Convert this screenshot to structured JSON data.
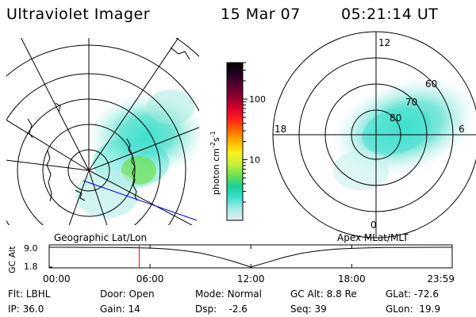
{
  "header": {
    "title": "Ultraviolet Imager",
    "date": "15 Mar 07",
    "time": "05:21:14 UT"
  },
  "left_panel": {
    "caption": "Geographic Lat/Lon"
  },
  "right_panel": {
    "caption": "Apex MLat/MLT",
    "mlt_labels": [
      "12",
      "18",
      "6",
      "0"
    ],
    "lat_labels": [
      "60",
      "70",
      "80"
    ]
  },
  "colorbar": {
    "label": "photon cm",
    "label_sup1": "-2",
    "label_s": "s",
    "label_sup2": "-1",
    "scale": "log",
    "range": [
      1,
      400
    ],
    "ticks": [
      {
        "value": 10,
        "label": "10"
      },
      {
        "value": 100,
        "label": "100"
      }
    ],
    "colors": [
      "#e6eef0",
      "#a8ece6",
      "#3fe0cf",
      "#1ccf9a",
      "#6ee04e",
      "#c8f03c",
      "#fff01e",
      "#ffb300",
      "#ff6a00",
      "#ff1e1e",
      "#d2002a",
      "#8c0030",
      "#55002c",
      "#22001c",
      "#000000"
    ]
  },
  "chart_data": {
    "type": "line",
    "title": "",
    "ylabel": "GC Alt",
    "ytick_labels": [
      "9.0",
      "1.8"
    ],
    "ylim": [
      1.8,
      9.0
    ],
    "xlim": [
      0,
      23.98
    ],
    "xtick_labels": [
      "00:00",
      "06:00",
      "12:00",
      "18:00",
      "23:59"
    ],
    "xticks": [
      0,
      6,
      12,
      18,
      23.98
    ],
    "current_time_hours": 5.354,
    "series": [
      {
        "x": [
          0,
          1,
          2,
          3,
          4,
          5,
          6,
          7,
          8,
          9,
          10,
          11,
          12,
          13,
          14,
          15,
          16,
          17,
          18,
          19,
          20,
          21,
          22,
          23,
          23.98
        ],
        "y": [
          9.0,
          9.0,
          8.98,
          8.95,
          8.9,
          8.82,
          8.7,
          8.4,
          7.8,
          6.9,
          5.5,
          3.8,
          1.8,
          3.6,
          5.4,
          6.8,
          7.7,
          8.3,
          8.6,
          8.8,
          8.9,
          8.95,
          8.98,
          9.0,
          9.0
        ]
      }
    ]
  },
  "info": {
    "flt_label": "Flt:",
    "flt_value": "LBHL",
    "ip_label": "IP:",
    "ip_value": "36.0",
    "door_label": "Door:",
    "door_value": "Open",
    "gain_label": "Gain:",
    "gain_value": "14",
    "mode_label": "Mode:",
    "mode_value": "Normal",
    "dsp_label": "Dsp:",
    "dsp_value": "-2.6",
    "gcalt_label": "GC Alt:",
    "gcalt_value": "8.8 Re",
    "seq_label": "Seq:",
    "seq_value": "39",
    "glat_label": "GLat:",
    "glat_value": "-72.6",
    "glon_label": "GLon:",
    "glon_value": "19.9"
  },
  "colors": {
    "grid": "#000000",
    "pass_line": "#0000ff",
    "time_marker": "#ff0000",
    "aurora_low": "#a8ece6",
    "aurora_mid": "#3fe0cf",
    "aurora_high": "#6ee04e"
  }
}
